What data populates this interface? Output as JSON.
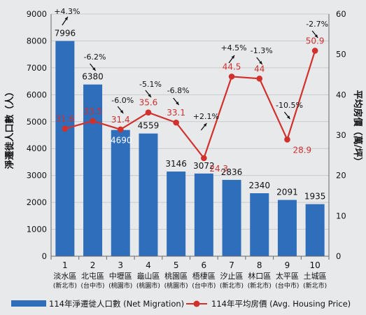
{
  "chart_data": {
    "type": "bar+line",
    "categories": [
      "1",
      "2",
      "3",
      "4",
      "5",
      "6",
      "7",
      "8",
      "9",
      "10"
    ],
    "district_names": [
      "淡水區",
      "北屯區",
      "中壢區",
      "龜山區",
      "桃園區",
      "梧棲區",
      "汐止區",
      "林口區",
      "太平區",
      "土城區"
    ],
    "city_names": [
      "(新北市)",
      "(台中市)",
      "(桃園市)",
      "(桃園市)",
      "(桃園市)",
      "(台中市)",
      "(新北市)",
      "(新北市)",
      "(台中市)",
      "(新北市)"
    ],
    "series": [
      {
        "name": "114年淨遷徙人口數 (Net Migration)",
        "type": "bar",
        "axis": "left",
        "color": "#2f6eba",
        "values": [
          7996,
          6380,
          4690,
          4559,
          3146,
          3072,
          2836,
          2340,
          2091,
          1935
        ]
      },
      {
        "name": "114年平均房價 (Avg. Housing Price)",
        "type": "line",
        "axis": "right",
        "color": "#d0312d",
        "values": [
          31.6,
          33.5,
          31.4,
          35.6,
          33.1,
          24.3,
          44.5,
          44,
          28.9,
          50.9
        ]
      }
    ],
    "bar_labels": [
      "7996",
      "6380",
      "4690",
      "4559",
      "3146",
      "3072",
      "2836",
      "2340",
      "2091",
      "1935"
    ],
    "line_labels": [
      "31.6",
      "33.5",
      "31.4",
      "35.6",
      "33.1",
      "24.3",
      "44.5",
      "44",
      "28.9",
      "50.9"
    ],
    "change_annotations": [
      {
        "index": 0,
        "text": "+4.3%",
        "direction": "up"
      },
      {
        "index": 1,
        "text": "-6.2%",
        "direction": "down"
      },
      {
        "index": 2,
        "text": "-6.0%",
        "direction": "down"
      },
      {
        "index": 3,
        "text": "-5.1%",
        "direction": "down"
      },
      {
        "index": 4,
        "text": "-6.8%",
        "direction": "down"
      },
      {
        "index": 5,
        "text": "+2.1%",
        "direction": "up"
      },
      {
        "index": 6,
        "text": "+4.5%",
        "direction": "up"
      },
      {
        "index": 7,
        "text": "-1.3%",
        "direction": "down"
      },
      {
        "index": 8,
        "text": "-10.5%",
        "direction": "down"
      },
      {
        "index": 9,
        "text": "-2.7%",
        "direction": "down"
      }
    ],
    "ylabel": "淨遷徙人口數（人）",
    "ylabel_right": "平均房價（萬/坪）",
    "ylim": [
      0,
      9000
    ],
    "ylim_right": [
      0,
      60
    ],
    "yticks": [
      0,
      1000,
      2000,
      3000,
      4000,
      5000,
      6000,
      7000,
      8000,
      9000
    ],
    "yticks_right": [
      0,
      10,
      20,
      30,
      40,
      50,
      60
    ],
    "grid": true,
    "legend_position": "bottom"
  }
}
